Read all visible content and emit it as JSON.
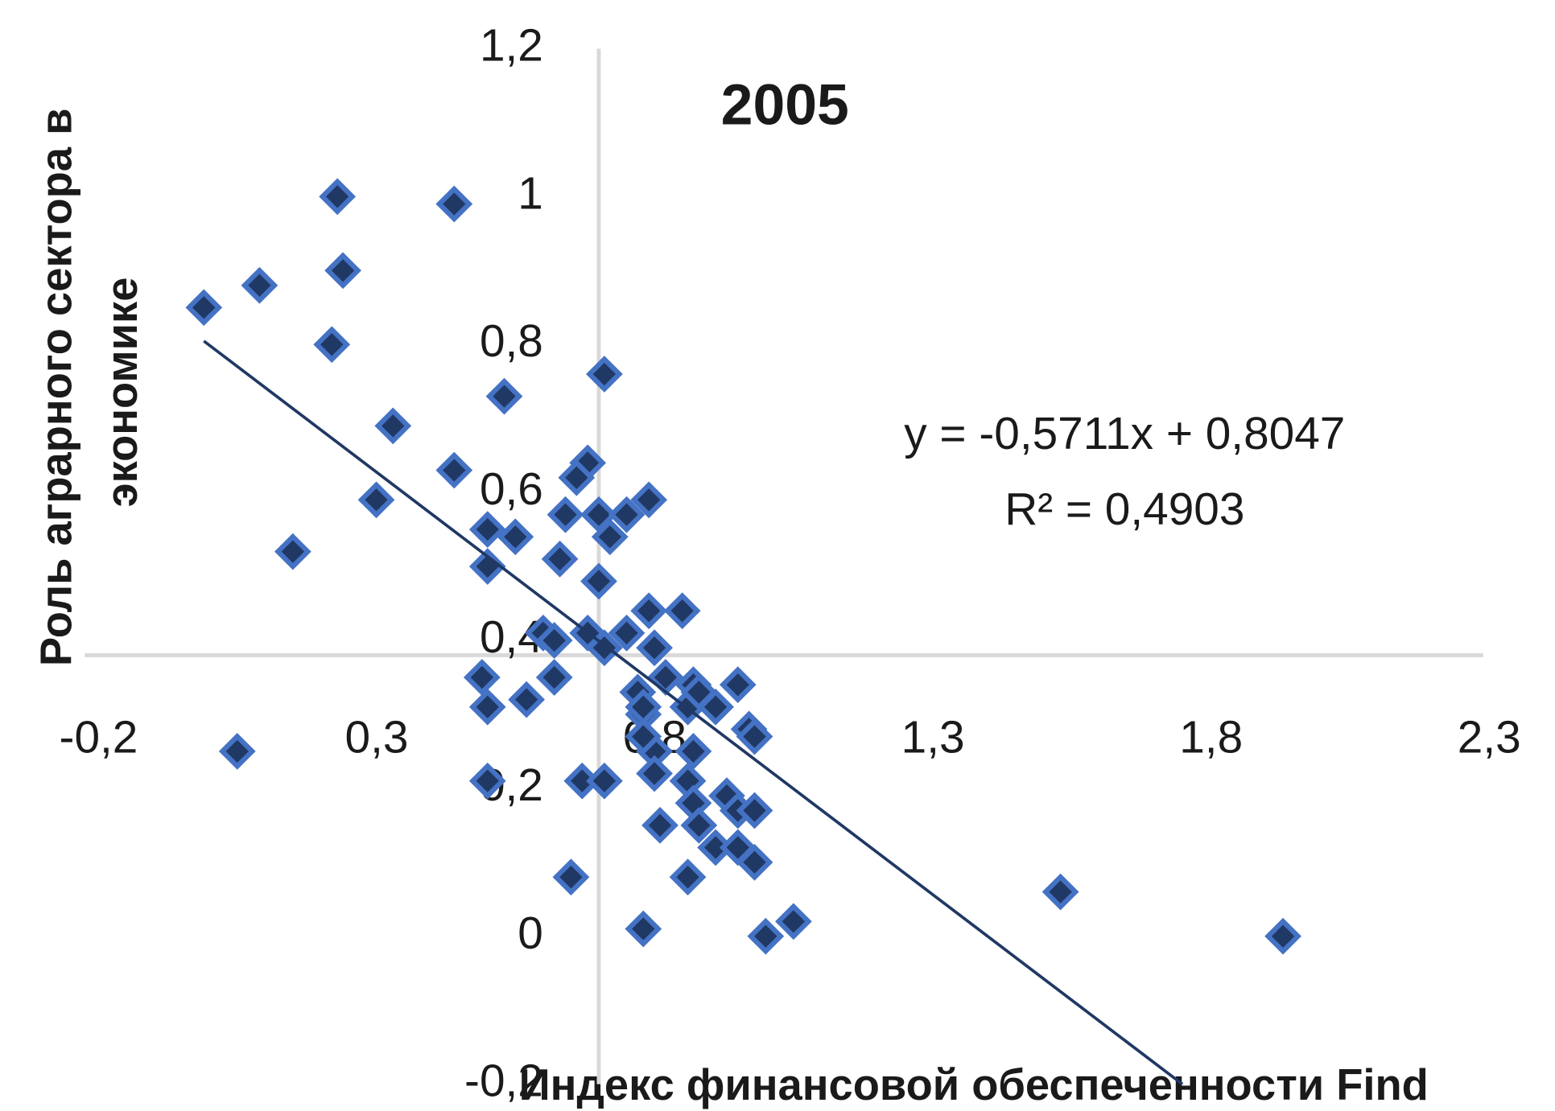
{
  "chart_data": {
    "type": "scatter",
    "title": "2005",
    "x_label": "Индекс финансовой обеспеченности Find",
    "y_label": [
      "Роль аграрного сектора в",
      "экономике"
    ],
    "color": "#203864",
    "marker_edge_color": "#4472c4",
    "xlim": [
      -0.2,
      2.3
    ],
    "ylim": [
      -0.2,
      1.2
    ],
    "xticks": [
      {
        "value": -0.2,
        "label": "-0,2"
      },
      {
        "value": 0.3,
        "label": "0,3"
      },
      {
        "value": 0.8,
        "label": "0,8"
      },
      {
        "value": 1.3,
        "label": "1,3"
      },
      {
        "value": 1.8,
        "label": "1,8"
      },
      {
        "value": 2.3,
        "label": "2,3"
      }
    ],
    "yticks": [
      {
        "value": -0.2,
        "label": "-0,2"
      },
      0,
      {
        "value": 0.2,
        "label": "0,2"
      },
      {
        "value": 0.4,
        "label": "0,4"
      },
      {
        "value": 0.6,
        "label": "0,6"
      },
      {
        "value": 0.8,
        "label": "0,8"
      },
      1,
      {
        "value": 1.2,
        "label": "1,2"
      }
    ],
    "x_axis_crosses_y": 0.38,
    "y_axis_crosses_x": 0.71,
    "x": [
      0.24,
      0.45,
      0.1,
      0.25,
      0.0,
      0.23,
      0.72,
      0.54,
      0.34,
      0.45,
      0.31,
      0.69,
      0.67,
      0.8,
      0.16,
      0.51,
      0.56,
      0.65,
      0.71,
      0.76,
      0.73,
      0.64,
      0.51,
      0.71,
      0.8,
      0.86,
      0.61,
      0.63,
      0.72,
      0.76,
      0.81,
      0.5,
      0.63,
      0.58,
      0.51,
      0.83,
      0.78,
      0.88,
      0.96,
      0.87,
      0.79,
      0.92,
      0.98,
      0.99,
      0.81,
      0.88,
      0.06,
      0.51,
      0.68,
      0.72,
      0.81,
      0.87,
      0.94,
      0.88,
      0.96,
      0.99,
      0.89,
      0.82,
      0.92,
      0.96,
      0.99,
      0.87,
      0.66,
      0.79,
      1.06,
      1.01,
      1.54,
      1.94,
      0.79,
      0.89,
      0.79,
      0.69
    ],
    "y": [
      1.0,
      0.99,
      0.88,
      0.9,
      0.85,
      0.8,
      0.76,
      0.73,
      0.69,
      0.63,
      0.59,
      0.64,
      0.62,
      0.59,
      0.52,
      0.55,
      0.54,
      0.57,
      0.57,
      0.57,
      0.54,
      0.51,
      0.5,
      0.48,
      0.44,
      0.44,
      0.41,
      0.4,
      0.39,
      0.41,
      0.39,
      0.35,
      0.35,
      0.32,
      0.31,
      0.35,
      0.33,
      0.34,
      0.34,
      0.31,
      0.3,
      0.31,
      0.28,
      0.27,
      0.25,
      0.25,
      0.25,
      0.21,
      0.21,
      0.21,
      0.22,
      0.21,
      0.19,
      0.18,
      0.17,
      0.17,
      0.15,
      0.15,
      0.12,
      0.12,
      0.1,
      0.08,
      0.08,
      0.01,
      0.02,
      0.0,
      0.06,
      0.0,
      0.31,
      0.33,
      0.27,
      0.41
    ],
    "trendline": {
      "slope": -0.5711,
      "intercept": 0.8047,
      "equation": "y = -0,5711x + 0,8047",
      "r2": 0.4903,
      "r2_label": "R² = 0,4903"
    }
  }
}
